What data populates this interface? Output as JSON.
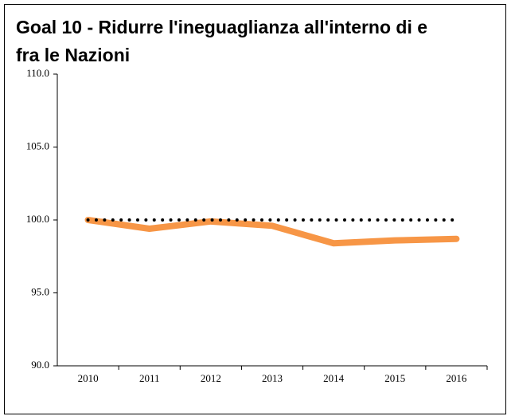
{
  "chart_data": {
    "type": "line",
    "title": "Goal 10 - Ridurre l'ineguaglianza all'interno di e fra le Nazioni",
    "categories": [
      "2010",
      "2011",
      "2012",
      "2013",
      "2014",
      "2015",
      "2016"
    ],
    "series": [
      {
        "color": "#f79646",
        "style": "solid",
        "values": [
          100.0,
          99.4,
          99.9,
          99.6,
          98.4,
          98.6,
          98.7
        ]
      },
      {
        "color": "#000000",
        "style": "dotted",
        "values": [
          100.0,
          100.0,
          100.0,
          100.0,
          100.0,
          100.0,
          100.0
        ]
      }
    ],
    "ylim": [
      90,
      110
    ],
    "yticks": [
      {
        "value": 90,
        "label": "90.0"
      },
      {
        "value": 95,
        "label": "95.0"
      },
      {
        "value": 100,
        "label": "100.0"
      },
      {
        "value": 105,
        "label": "105.0"
      },
      {
        "value": 110,
        "label": "110.0"
      }
    ],
    "grid": false
  }
}
